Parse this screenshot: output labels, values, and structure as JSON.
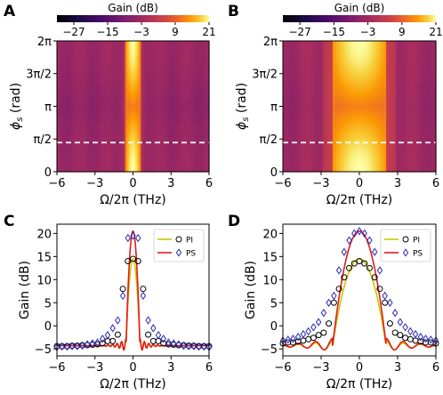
{
  "chart_data": [
    {
      "panel": "A",
      "type": "heatmap",
      "colorbar": {
        "label": "Gain (dB)",
        "ticks": [
          "−27",
          "−15",
          "−3",
          "9",
          "21"
        ],
        "range": [
          -33,
          21
        ]
      },
      "xlabel": "Ω/2π (THz)",
      "ylabel": "ϕs (rad)",
      "xticks": [
        "−6",
        "−3",
        "0",
        "3",
        "6"
      ],
      "yticks": [
        "0",
        "π/2",
        "π",
        "3π/2",
        "2π"
      ],
      "xlim": [
        -6,
        6
      ],
      "ylim": [
        0,
        6.283
      ],
      "dashed_line_phi": 1.4,
      "peak_halfwidth_thz": 0.55
    },
    {
      "panel": "B",
      "type": "heatmap",
      "colorbar": {
        "label": "Gain (dB)",
        "ticks": [
          "−27",
          "−15",
          "−3",
          "9",
          "21"
        ],
        "range": [
          -33,
          21
        ]
      },
      "xlabel": "Ω/2π (THz)",
      "ylabel": "ϕs (rad)",
      "xticks": [
        "−6",
        "−3",
        "0",
        "3",
        "6"
      ],
      "yticks": [
        "0",
        "π/2",
        "π",
        "3π/2",
        "2π"
      ],
      "xlim": [
        -6,
        6
      ],
      "ylim": [
        0,
        6.283
      ],
      "dashed_line_phi": 1.4,
      "peak_halfwidth_thz": 2.1
    },
    {
      "panel": "C",
      "type": "line",
      "xlabel": "Ω/2π (THz)",
      "ylabel": "Gain (dB)",
      "xticks": [
        "−6",
        "−3",
        "0",
        "3",
        "6"
      ],
      "yticks": [
        "−5",
        "0",
        "5",
        "10",
        "15",
        "20"
      ],
      "xlim": [
        -6,
        6
      ],
      "ylim": [
        -6.5,
        22
      ],
      "legend": {
        "placement": "top-right",
        "entries": [
          "PI",
          "PS"
        ]
      },
      "series": [
        {
          "name": "PI",
          "color": "#c8c800",
          "peak": 14.5,
          "halfwidth": 0.55
        },
        {
          "name": "PS",
          "color": "#e41a1c",
          "peak": 20.5,
          "halfwidth": 0.55
        }
      ],
      "markers": [
        {
          "legend": "PI",
          "style": "circle",
          "color": "#000000",
          "x": [
            -6,
            -5.6,
            -5.2,
            -4.8,
            -4.4,
            -4,
            -3.6,
            -3.2,
            -2.8,
            -2.4,
            -2,
            -1.6,
            -1.2,
            -0.8,
            -0.4,
            0,
            0.4,
            0.8,
            1.2,
            1.6,
            2,
            2.4,
            2.8,
            3.2,
            3.6,
            4,
            4.4,
            4.8,
            5.2,
            5.6,
            6
          ],
          "y": [
            -4.4,
            -4.4,
            -4.4,
            -4.3,
            -4.3,
            -4.2,
            -4.2,
            -4.1,
            -4,
            -3.8,
            -3.3,
            -3.3,
            -1.9,
            8,
            14,
            14.5,
            14,
            8,
            -1.9,
            -3.3,
            -3.3,
            -3.8,
            -4,
            -4.1,
            -4.2,
            -4.2,
            -4.3,
            -4.3,
            -4.4,
            -4.4,
            -4.4
          ]
        },
        {
          "legend": "PS",
          "style": "diamond",
          "color": "#2b2bb3",
          "x": [
            -6,
            -5.6,
            -5.2,
            -4.8,
            -4.4,
            -4,
            -3.6,
            -3.2,
            -2.8,
            -2.4,
            -2,
            -1.6,
            -1.2,
            -0.8,
            -0.4,
            0,
            0.4,
            0.8,
            1.2,
            1.6,
            2,
            2.4,
            2.8,
            3.2,
            3.6,
            4,
            4.4,
            4.8,
            5.2,
            5.6,
            6
          ],
          "y": [
            -4.6,
            -4.5,
            -4.5,
            -4.4,
            -4.4,
            -4.3,
            -4,
            -3.8,
            -3.6,
            -2.8,
            -2,
            -0.5,
            1.2,
            6.5,
            19,
            19.5,
            19,
            6.5,
            1.2,
            -0.5,
            -2,
            -2.8,
            -3.6,
            -3.8,
            -4,
            -4.3,
            -4.4,
            -4.4,
            -4.5,
            -4.5,
            -4.6
          ]
        }
      ]
    },
    {
      "panel": "D",
      "type": "line",
      "xlabel": "Ω/2π (THz)",
      "ylabel": "Gain (dB)",
      "xticks": [
        "−6",
        "−3",
        "0",
        "3",
        "6"
      ],
      "yticks": [
        "−5",
        "0",
        "5",
        "10",
        "15",
        "20"
      ],
      "xlim": [
        -6,
        6
      ],
      "ylim": [
        -6.5,
        22
      ],
      "legend": {
        "placement": "top-right",
        "entries": [
          "PI",
          "PS"
        ]
      },
      "series": [
        {
          "name": "PI",
          "color": "#c8c800",
          "peak": 14.5,
          "halfwidth": 2.1
        },
        {
          "name": "PS",
          "color": "#e41a1c",
          "peak": 20.5,
          "halfwidth": 2.1
        }
      ],
      "markers": [
        {
          "legend": "PI",
          "style": "circle",
          "color": "#000000",
          "x": [
            -6,
            -5.6,
            -5.2,
            -4.8,
            -4.4,
            -4,
            -3.6,
            -3.2,
            -2.8,
            -2.4,
            -2,
            -1.6,
            -1.2,
            -0.8,
            -0.4,
            0,
            0.4,
            0.8,
            1.2,
            1.6,
            2,
            2.4,
            2.8,
            3.2,
            3.6,
            4,
            4.4,
            4.8,
            5.2,
            5.6,
            6
          ],
          "y": [
            -3.8,
            -3.6,
            -3.6,
            -3.4,
            -3.2,
            -2.9,
            -2.6,
            -2,
            -1.5,
            0.5,
            5,
            8,
            10.5,
            12.5,
            13.5,
            14,
            13.5,
            12.5,
            10.5,
            8,
            5,
            0.5,
            -1.5,
            -2,
            -2.6,
            -2.9,
            -3.2,
            -3.4,
            -3.6,
            -3.6,
            -3.8
          ]
        },
        {
          "legend": "PS",
          "style": "diamond",
          "color": "#2b2bb3",
          "x": [
            -6,
            -5.6,
            -5.2,
            -4.8,
            -4.4,
            -4,
            -3.6,
            -3.2,
            -2.8,
            -2.4,
            -2,
            -1.6,
            -1.2,
            -0.8,
            -0.4,
            0,
            0.4,
            0.8,
            1.2,
            1.6,
            2,
            2.4,
            2.8,
            3.2,
            3.6,
            4,
            4.4,
            4.8,
            5.2,
            5.6,
            6
          ],
          "y": [
            -3.2,
            -3,
            -2.8,
            -2.4,
            -1.8,
            -1.2,
            -0.3,
            0.8,
            2.8,
            5,
            6.5,
            12,
            16,
            18.5,
            20,
            20.5,
            20,
            18.5,
            16,
            12,
            6.5,
            5,
            2.8,
            0.8,
            -0.3,
            -1.2,
            -1.8,
            -2.4,
            -2.8,
            -3,
            -3.2
          ]
        }
      ]
    }
  ]
}
